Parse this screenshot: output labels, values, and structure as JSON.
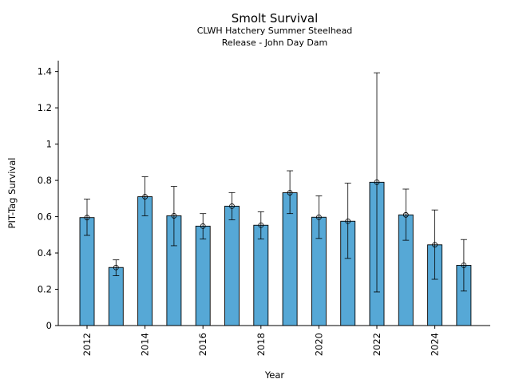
{
  "chart_data": {
    "type": "bar",
    "title": "Smolt Survival",
    "subtitle_lines": [
      "CLWH Hatchery Summer Steelhead",
      "Release - John Day Dam"
    ],
    "xlabel": "Year",
    "ylabel": "PIT-Tag Survival",
    "ylim": [
      0,
      1.46
    ],
    "yticks": [
      0,
      0.2,
      0.4,
      0.6,
      0.8,
      1,
      1.2,
      1.4
    ],
    "ytick_labels": [
      "0",
      "0.2",
      "0.4",
      "0.6",
      "0.8",
      "1",
      "1.2",
      "1.4"
    ],
    "xtick_labels": [
      "2012",
      "2014",
      "2016",
      "2018",
      "2020",
      "2022",
      "2024"
    ],
    "categories": [
      2012,
      2013,
      2014,
      2015,
      2016,
      2017,
      2018,
      2019,
      2020,
      2021,
      2022,
      2023,
      2024,
      2025
    ],
    "values": [
      0.595,
      0.32,
      0.71,
      0.605,
      0.548,
      0.658,
      0.553,
      0.732,
      0.597,
      0.575,
      0.79,
      0.61,
      0.445,
      0.332
    ],
    "error_lower": [
      0.497,
      0.275,
      0.605,
      0.44,
      0.477,
      0.583,
      0.477,
      0.617,
      0.48,
      0.37,
      0.185,
      0.47,
      0.255,
      0.19
    ],
    "error_upper": [
      0.697,
      0.362,
      0.82,
      0.767,
      0.617,
      0.733,
      0.627,
      0.853,
      0.715,
      0.785,
      1.393,
      0.752,
      0.637,
      0.474
    ],
    "colors": {
      "bar": "#56a8d6",
      "edge": "#000000"
    },
    "grid": false
  }
}
